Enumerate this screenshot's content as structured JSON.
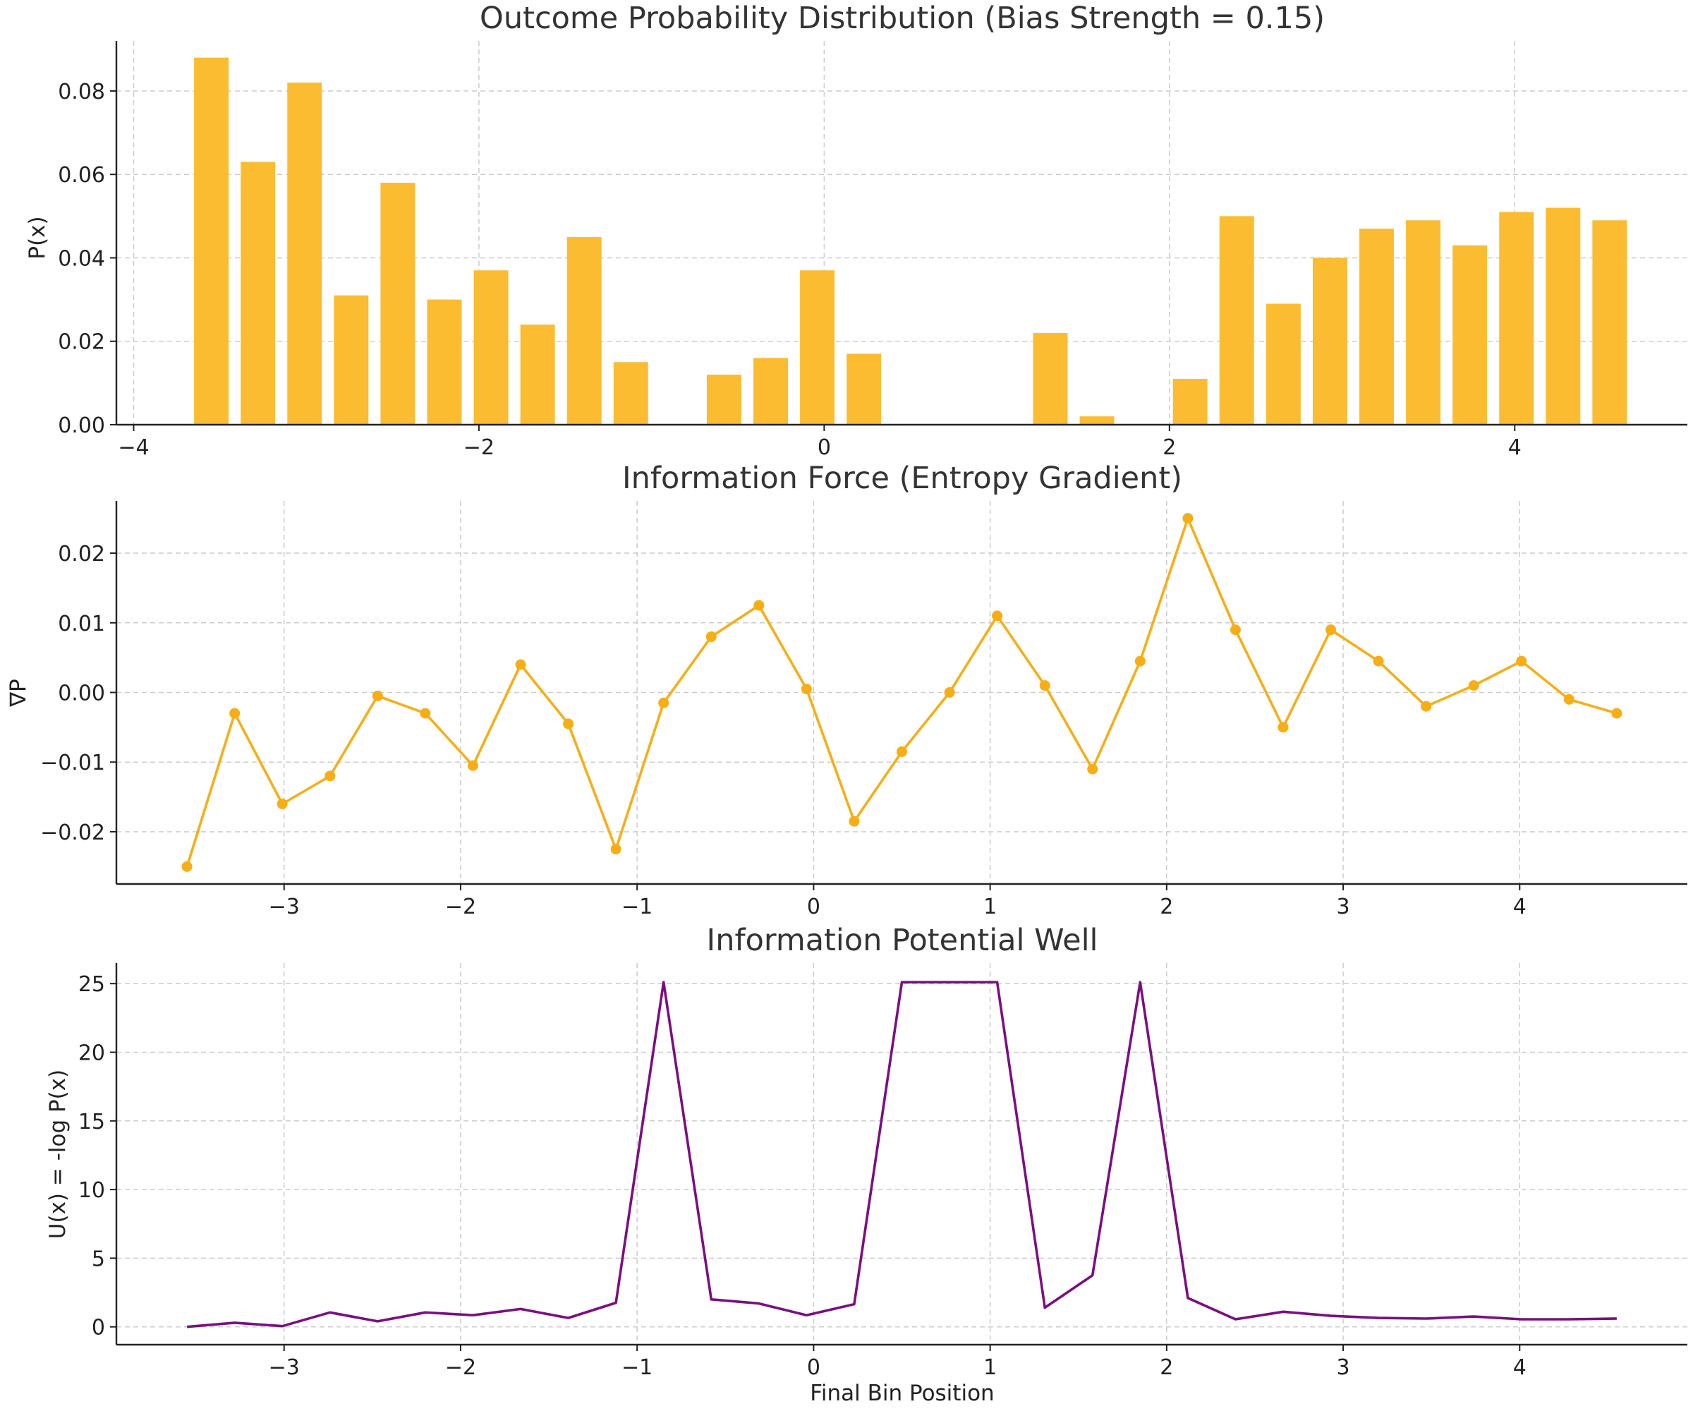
{
  "chart_data": [
    {
      "type": "bar",
      "title": "Outcome Probability Distribution (Bias Strength = 0.15)",
      "xlabel": "",
      "ylabel": "P(x)",
      "xlim": [
        -4.1,
        5.0
      ],
      "ylim": [
        0,
        0.092
      ],
      "xticks": [
        -4,
        -2,
        0,
        2,
        4
      ],
      "xtick_labels": [
        "−4",
        "−2",
        "0",
        "2",
        "4"
      ],
      "yticks": [
        0,
        0.02,
        0.04,
        0.06,
        0.08
      ],
      "ytick_labels": [
        "0.00",
        "0.02",
        "0.04",
        "0.06",
        "0.08"
      ],
      "bar_width": 0.2,
      "color": "#FBBC32",
      "grid": true,
      "x": [
        -3.55,
        -3.28,
        -3.01,
        -2.74,
        -2.47,
        -2.2,
        -1.93,
        -1.66,
        -1.39,
        -1.12,
        -0.85,
        -0.58,
        -0.31,
        -0.04,
        0.23,
        0.5,
        0.77,
        1.04,
        1.31,
        1.58,
        1.85,
        2.12,
        2.39,
        2.66,
        2.93,
        3.2,
        3.47,
        3.74,
        4.01,
        4.28,
        4.55
      ],
      "values": [
        0.088,
        0.063,
        0.082,
        0.031,
        0.058,
        0.03,
        0.037,
        0.024,
        0.045,
        0.015,
        0.0,
        0.012,
        0.016,
        0.037,
        0.017,
        0.0,
        0.0,
        0.0,
        0.022,
        0.002,
        0.0,
        0.011,
        0.05,
        0.029,
        0.04,
        0.047,
        0.049,
        0.043,
        0.051,
        0.052,
        0.049
      ]
    },
    {
      "type": "line",
      "title": "Information Force (Entropy Gradient)",
      "xlabel": "",
      "ylabel": "∇P",
      "xlim": [
        -3.95,
        4.95
      ],
      "ylim": [
        -0.0275,
        0.0275
      ],
      "xticks": [
        -3,
        -2,
        -1,
        0,
        1,
        2,
        3,
        4
      ],
      "xtick_labels": [
        "−3",
        "−2",
        "−1",
        "0",
        "1",
        "2",
        "3",
        "4"
      ],
      "yticks": [
        -0.02,
        -0.01,
        0.0,
        0.01,
        0.02
      ],
      "ytick_labels": [
        "−0.02",
        "−0.01",
        "0.00",
        "0.01",
        "0.02"
      ],
      "color": "#F7AE16",
      "markers": true,
      "grid": true,
      "x": [
        -3.55,
        -3.28,
        -3.01,
        -2.74,
        -2.47,
        -2.2,
        -1.93,
        -1.66,
        -1.39,
        -1.12,
        -0.85,
        -0.58,
        -0.31,
        -0.04,
        0.23,
        0.5,
        0.77,
        1.04,
        1.31,
        1.58,
        1.85,
        2.12,
        2.39,
        2.66,
        2.93,
        3.2,
        3.47,
        3.74,
        4.01,
        4.28,
        4.55
      ],
      "values": [
        -0.025,
        -0.003,
        -0.016,
        -0.012,
        -0.0005,
        -0.003,
        -0.0105,
        0.004,
        -0.0045,
        -0.0225,
        -0.0015,
        0.008,
        0.0125,
        0.0005,
        -0.0185,
        -0.0085,
        0.0,
        0.011,
        0.001,
        -0.011,
        0.0045,
        0.025,
        0.009,
        -0.005,
        0.009,
        0.0045,
        -0.002,
        0.001,
        0.0045,
        -0.001,
        -0.003
      ]
    },
    {
      "type": "line",
      "title": "Information Potential Well",
      "xlabel": "Final Bin Position",
      "ylabel": "U(x) = -log P(x)",
      "xlim": [
        -3.95,
        4.95
      ],
      "ylim": [
        -1.3,
        26.5
      ],
      "xticks": [
        -3,
        -2,
        -1,
        0,
        1,
        2,
        3,
        4
      ],
      "xtick_labels": [
        "−3",
        "−2",
        "−1",
        "0",
        "1",
        "2",
        "3",
        "4"
      ],
      "yticks": [
        0,
        5,
        10,
        15,
        20,
        25
      ],
      "ytick_labels": [
        "0",
        "5",
        "10",
        "15",
        "20",
        "25"
      ],
      "color": "#7B0F80",
      "markers": false,
      "grid": true,
      "x": [
        -3.55,
        -3.28,
        -3.01,
        -2.74,
        -2.47,
        -2.2,
        -1.93,
        -1.66,
        -1.39,
        -1.12,
        -0.85,
        -0.58,
        -0.31,
        -0.04,
        0.23,
        0.5,
        0.77,
        1.04,
        1.31,
        1.58,
        1.85,
        2.12,
        2.39,
        2.66,
        2.93,
        3.2,
        3.47,
        3.74,
        4.01,
        4.28,
        4.55
      ],
      "values": [
        0.0,
        0.3,
        0.05,
        1.05,
        0.4,
        1.05,
        0.85,
        1.3,
        0.65,
        1.75,
        25.1,
        2.0,
        1.7,
        0.85,
        1.65,
        25.1,
        25.1,
        25.1,
        1.4,
        3.75,
        25.1,
        2.1,
        0.55,
        1.1,
        0.8,
        0.65,
        0.6,
        0.75,
        0.55,
        0.55,
        0.6
      ]
    }
  ]
}
